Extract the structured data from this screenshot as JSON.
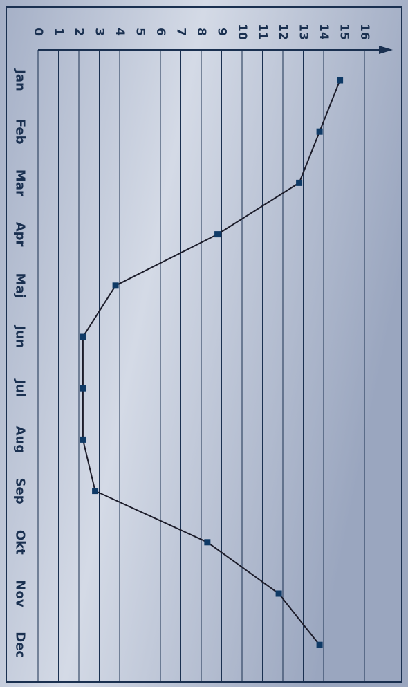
{
  "chart_data": {
    "type": "line",
    "categories": [
      "Jan",
      "Feb",
      "Mar",
      "Apr",
      "Maj",
      "Jun",
      "Jul",
      "Aug",
      "Sep",
      "Okt",
      "Nov",
      "Dec"
    ],
    "series": [
      {
        "values": [
          14.8,
          13.8,
          12.8,
          8.8,
          3.8,
          2.2,
          2.2,
          2.2,
          2.8,
          8.3,
          11.8,
          13.8
        ]
      }
    ],
    "y_ticks": [
      "0",
      "1",
      "2",
      "3",
      "4",
      "5",
      "6",
      "7",
      "8",
      "9",
      "10",
      "11",
      "12",
      "13",
      "14",
      "15",
      "16"
    ],
    "ylim": [
      0,
      16
    ],
    "orientation": "rotated-90-clockwise",
    "grid": true,
    "colors": {
      "line": "#1c1c2a",
      "marker": "#0f3a66",
      "text": "#1a3050",
      "grid": "#1a3050"
    }
  }
}
